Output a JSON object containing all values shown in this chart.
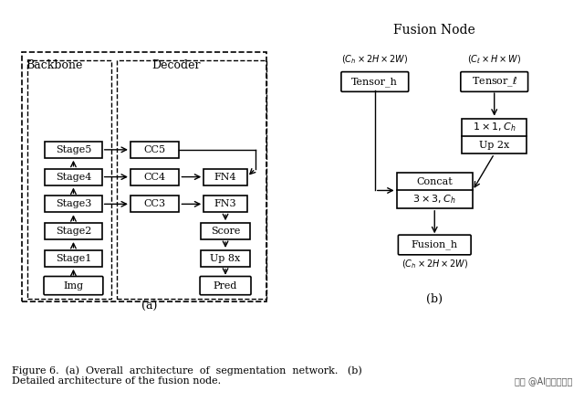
{
  "title": "Fusion Node",
  "fig_caption": "Figure 6.  (a)  Overall  architecture  of  segmentation  network.   (b)\nDetailed architecture of the fusion node.",
  "watermark": "头条 @AI科技大本营",
  "bg_color": "#ffffff",
  "text_color": "#000000",
  "box_color": "#000000",
  "backbone_label": "Backbone",
  "decoder_label": "Decoder",
  "label_a": "(a)",
  "label_b": "(b)",
  "stages": [
    "Stage5",
    "Stage4",
    "Stage3",
    "Stage2",
    "Stage1",
    "Img"
  ],
  "cc_nodes": [
    "CC5",
    "CC4",
    "CC3"
  ],
  "fn_nodes": [
    "FN4",
    "FN3"
  ],
  "bottom_nodes": [
    "Score",
    "Up 8x",
    "Pred"
  ]
}
